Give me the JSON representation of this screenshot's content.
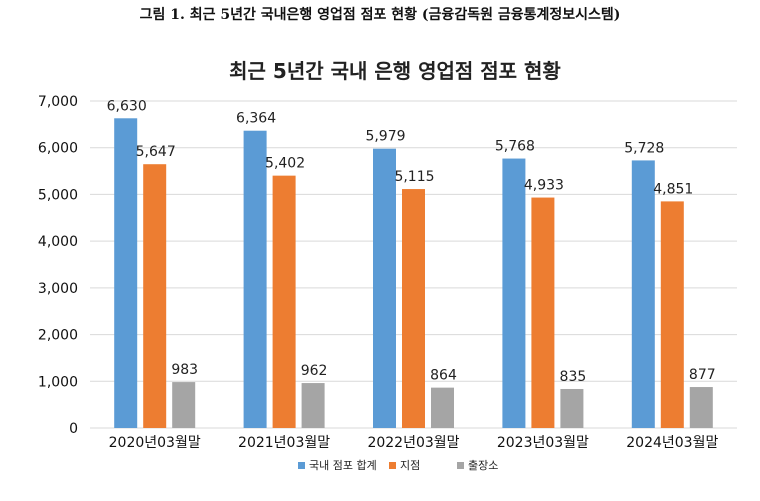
{
  "figure_caption": "그림 1. 최근 5년간 국내은행 영업점 점포 현황 (금융감독원 금융통계정보시스템)",
  "chart_data": {
    "type": "bar",
    "title": "최근 5년간 국내 은행 영업점 점포 현황",
    "categories": [
      "2020년03월말",
      "2021년03월말",
      "2022년03월말",
      "2023년03월말",
      "2024년03월말"
    ],
    "series": [
      {
        "name": "국내 점포 합계",
        "color": "#5b9bd5",
        "values": [
          6630,
          6364,
          5979,
          5768,
          5728
        ]
      },
      {
        "name": "지점",
        "color": "#ed7d31",
        "values": [
          5647,
          5402,
          5115,
          4933,
          4851
        ]
      },
      {
        "name": "출장소",
        "color": "#a5a5a5",
        "values": [
          983,
          962,
          864,
          835,
          877
        ]
      }
    ],
    "ylim": [
      0,
      7000
    ],
    "yticks": [
      0,
      1000,
      2000,
      3000,
      4000,
      5000,
      6000,
      7000
    ],
    "ytick_labels": [
      "0",
      "1,000",
      "2,000",
      "3,000",
      "4,000",
      "5,000",
      "6,000",
      "7,000"
    ],
    "data_labels": [
      [
        "6,630",
        "6,364",
        "5,979",
        "5,768",
        "5,728"
      ],
      [
        "5,647",
        "5,402",
        "5,115",
        "4,933",
        "4,851"
      ],
      [
        "983",
        "962",
        "864",
        "835",
        "877"
      ]
    ],
    "grid": true,
    "legend_position": "bottom",
    "gridline_color": "#d9d9d9"
  }
}
